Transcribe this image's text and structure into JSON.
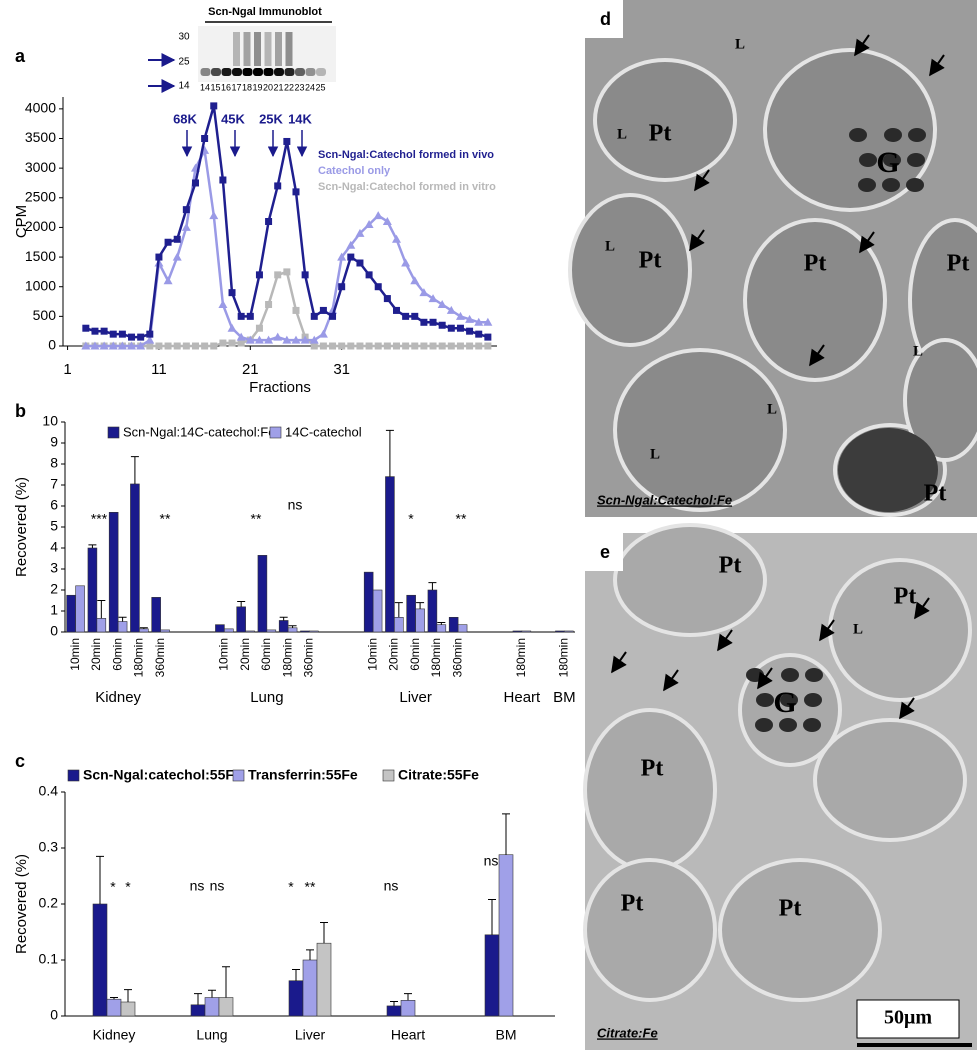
{
  "chart_data": [
    {
      "type": "line",
      "label": "a",
      "xlabel": "Fractions",
      "ylabel": "CPM",
      "x": [
        3,
        4,
        5,
        6,
        7,
        8,
        9,
        10,
        11,
        12,
        13,
        14,
        15,
        16,
        17,
        18,
        19,
        20,
        21,
        22,
        23,
        24,
        25,
        26,
        27,
        28,
        29,
        30,
        31,
        32,
        33,
        34,
        35,
        36,
        37,
        38,
        39,
        40,
        41,
        42,
        43,
        44,
        45,
        46,
        47
      ],
      "series": [
        {
          "name": "Scn-Ngal:Catechol formed in vivo",
          "color": "#1f1f8f",
          "marker": "square",
          "values": [
            300,
            250,
            250,
            200,
            200,
            150,
            150,
            200,
            1500,
            1750,
            1800,
            2300,
            2750,
            3500,
            4050,
            2800,
            900,
            500,
            500,
            1200,
            2100,
            2700,
            3450,
            2600,
            1200,
            500,
            600,
            500,
            1000,
            1500,
            1400,
            1200,
            1000,
            800,
            600,
            500,
            500,
            400,
            400,
            350,
            300,
            300,
            250,
            200,
            150
          ]
        },
        {
          "name": "Catechol only",
          "color": "#9a9ae6",
          "marker": "triangle",
          "values": [
            0,
            0,
            0,
            0,
            0,
            0,
            0,
            100,
            1400,
            1100,
            1500,
            2000,
            3000,
            3300,
            2200,
            700,
            300,
            150,
            100,
            100,
            100,
            150,
            100,
            100,
            100,
            100,
            200,
            600,
            1500,
            1700,
            1900,
            2050,
            2200,
            2100,
            1800,
            1400,
            1100,
            900,
            800,
            700,
            600,
            500,
            450,
            400,
            400
          ]
        },
        {
          "name": "Scn-Ngal:Catechol formed in vitro",
          "color": "#b8b8b8",
          "marker": "square",
          "values": [
            0,
            0,
            0,
            0,
            0,
            0,
            0,
            0,
            0,
            0,
            0,
            0,
            0,
            0,
            0,
            50,
            50,
            50,
            100,
            300,
            700,
            1200,
            1250,
            600,
            150,
            0,
            0,
            0,
            0,
            0,
            0,
            0,
            0,
            0,
            0,
            0,
            0,
            0,
            0,
            0,
            0,
            0,
            0,
            0,
            0
          ]
        }
      ],
      "xlim": [
        0.5,
        48
      ],
      "xticks": [
        1,
        11,
        21,
        31
      ],
      "ylim": [
        0,
        4200
      ],
      "yticks": [
        0,
        500,
        1000,
        1500,
        2000,
        2500,
        3000,
        3500,
        4000
      ],
      "annotations": [
        "68K",
        "45K",
        "25K",
        "14K"
      ],
      "blot": {
        "title": "Scn-Ngal Immunoblot",
        "markers": [
          "30",
          "25",
          "14"
        ],
        "lanes": [
          "14",
          "15",
          "16",
          "17",
          "18",
          "19",
          "20",
          "21",
          "22",
          "23",
          "24",
          "25"
        ]
      }
    },
    {
      "type": "bar",
      "label": "b",
      "ylabel": "Recovered (%)",
      "categories": [
        "10min",
        "20min",
        "60min",
        "180min",
        "360min",
        null,
        null,
        "10min",
        "20min",
        "60min",
        "180min",
        "360min",
        null,
        null,
        "10min",
        "20min",
        "60min",
        "180min",
        "360min",
        null,
        null,
        "180min",
        null,
        "180min"
      ],
      "groups": [
        "Kidney",
        "Lung",
        "Liver",
        "Heart",
        "BM"
      ],
      "series": [
        {
          "name": "Scn-Ngal:14C-catechol:Fe",
          "color": "#1a1a8c",
          "values": [
            1.75,
            4.0,
            5.7,
            7.05,
            1.65,
            null,
            null,
            0.35,
            1.2,
            3.65,
            0.55,
            0.05,
            null,
            null,
            2.85,
            7.4,
            1.75,
            2.0,
            0.7,
            null,
            null,
            0.05,
            null,
            0.05
          ],
          "errors": [
            null,
            0.15,
            null,
            1.3,
            null,
            null,
            null,
            null,
            0.25,
            null,
            0.15,
            null,
            null,
            null,
            null,
            2.2,
            null,
            0.35,
            null,
            null,
            null,
            null,
            null,
            null
          ]
        },
        {
          "name": "14C-catechol",
          "color": "#a0a0e8",
          "values": [
            2.2,
            0.65,
            0.5,
            0.15,
            0.1,
            null,
            null,
            0.15,
            0.05,
            0.1,
            0.2,
            0.05,
            null,
            null,
            2.0,
            0.7,
            1.1,
            0.35,
            0.35,
            null,
            null,
            0.05,
            null,
            0.05
          ],
          "errors": [
            null,
            0.85,
            0.2,
            0.05,
            null,
            null,
            null,
            null,
            null,
            null,
            0.1,
            null,
            null,
            null,
            null,
            0.7,
            0.3,
            0.1,
            null,
            null,
            null,
            null,
            null,
            null
          ]
        }
      ],
      "ylim": [
        0,
        10
      ],
      "yticks": [
        0,
        1,
        2,
        3,
        4,
        5,
        6,
        7,
        8,
        9,
        10
      ],
      "annotations": [
        "***",
        "**",
        "**",
        "ns",
        "*",
        "**"
      ]
    },
    {
      "type": "bar",
      "label": "c",
      "ylabel": "Recovered (%)",
      "categories": [
        "Kidney",
        "Lung",
        "Liver",
        "Heart",
        "BM"
      ],
      "series": [
        {
          "name": "Scn-Ngal:catechol:55Fe",
          "color": "#1a1a8c",
          "values": [
            0.2,
            0.02,
            0.063,
            0.018,
            0.145
          ],
          "errors": [
            0.085,
            0.02,
            0.02,
            0.008,
            0.063
          ]
        },
        {
          "name": "Transferrin:55Fe",
          "color": "#a0a0e8",
          "values": [
            0.03,
            0.033,
            0.1,
            0.028,
            0.288
          ],
          "errors": [
            0.003,
            0.013,
            0.018,
            0.012,
            0.073
          ]
        },
        {
          "name": "Citrate:55Fe",
          "color": "#c4c4c4",
          "values": [
            0.025,
            0.033,
            0.13,
            null,
            null
          ],
          "errors": [
            0.022,
            0.055,
            0.037,
            null,
            null
          ]
        }
      ],
      "ylim": [
        0,
        0.4
      ],
      "yticks": [
        0,
        0.1,
        0.2,
        0.3,
        0.4
      ],
      "annotations": [
        "*",
        "*",
        "ns",
        "ns",
        "*",
        "**",
        "ns",
        "ns"
      ]
    }
  ],
  "micrographs": [
    {
      "label": "d",
      "marks": [
        "L",
        "Pt",
        "L",
        "G",
        "L",
        "Pt",
        "Pt",
        "Pt",
        "L",
        "L",
        "L",
        "Pt"
      ],
      "caption": "Scn-Ngal:Catechol:Fe"
    },
    {
      "label": "e",
      "marks": [
        "Pt",
        "Pt",
        "L",
        "G",
        "Pt",
        "Pt",
        "Pt"
      ],
      "caption": "Citrate:Fe",
      "scale": "50μm"
    }
  ]
}
